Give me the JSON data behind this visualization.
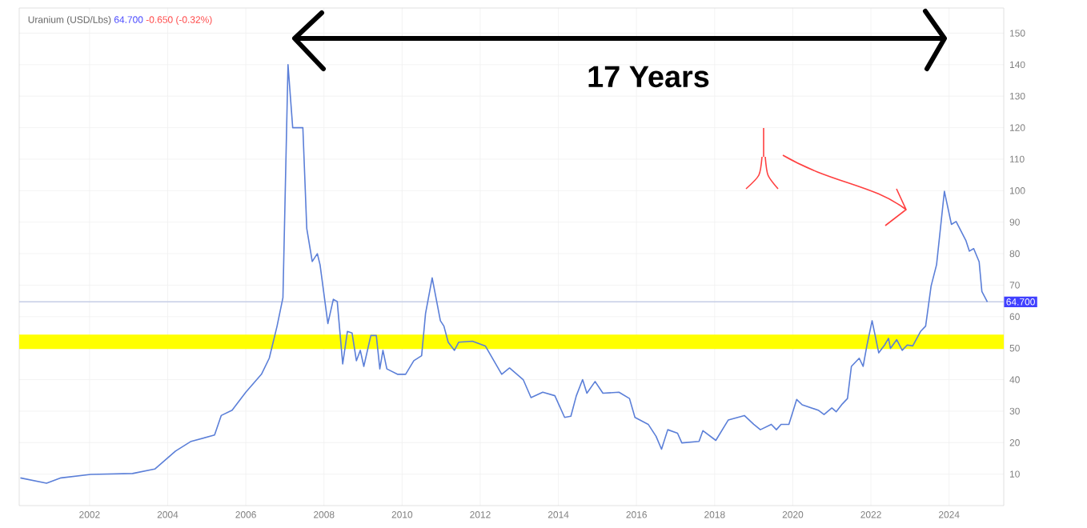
{
  "chart_data": {
    "type": "line",
    "title": "Uranium (USD/Lbs)",
    "subtitle": "64.700",
    "annotations": [
      "-0.650 (-0.32%)",
      "17 Years"
    ],
    "series": [
      {
        "color": "#5b7fd8",
        "x": [
          2000.23,
          2000.9,
          2001.27,
          2002.03,
          2003.1,
          2003.67,
          2004.2,
          2004.6,
          2005.2,
          2005.37,
          2005.65,
          2006.0,
          2006.4,
          2006.6,
          2006.8,
          2006.95,
          2007.08,
          2007.2,
          2007.46,
          2007.56,
          2007.7,
          2007.83,
          2007.9,
          2008.1,
          2008.24,
          2008.34,
          2008.48,
          2008.6,
          2008.72,
          2008.83,
          2008.93,
          2009.02,
          2009.2,
          2009.34,
          2009.43,
          2009.51,
          2009.61,
          2009.88,
          2010.09,
          2010.3,
          2010.5,
          2010.6,
          2010.77,
          2010.98,
          2011.07,
          2011.18,
          2011.34,
          2011.45,
          2011.8,
          2012.13,
          2012.55,
          2012.75,
          2013.1,
          2013.3,
          2013.6,
          2013.91,
          2014.16,
          2014.32,
          2014.46,
          2014.62,
          2014.73,
          2014.94,
          2015.14,
          2015.55,
          2015.82,
          2015.96,
          2016.3,
          2016.5,
          2016.64,
          2016.8,
          2017.05,
          2017.16,
          2017.6,
          2017.7,
          2018.03,
          2018.35,
          2018.76,
          2019.0,
          2019.17,
          2019.45,
          2019.58,
          2019.7,
          2019.9,
          2020.1,
          2020.24,
          2020.65,
          2020.8,
          2021.0,
          2021.11,
          2021.27,
          2021.4,
          2021.5,
          2021.7,
          2021.8,
          2021.9,
          2022.03,
          2022.2,
          2022.35,
          2022.45,
          2022.5,
          2022.66,
          2022.8,
          2022.93,
          2023.07,
          2023.27,
          2023.4,
          2023.54,
          2023.68,
          2023.88,
          2024.06,
          2024.18,
          2024.43,
          2024.52,
          2024.63,
          2024.77,
          2024.84,
          2024.98
        ],
        "values": [
          8.8,
          7.1,
          8.8,
          9.9,
          10.2,
          11.6,
          17.3,
          20.4,
          22.4,
          28.6,
          30.3,
          36,
          41.7,
          46.8,
          57,
          66,
          140,
          120,
          120,
          88,
          77.5,
          80,
          76.5,
          57.8,
          65.5,
          64.8,
          45,
          55.3,
          54.8,
          46,
          49.3,
          44.2,
          54,
          54,
          43.4,
          49.3,
          43.4,
          41.7,
          41.7,
          46,
          47.6,
          61,
          72.3,
          58.7,
          57,
          51.9,
          49.3,
          51.9,
          52.2,
          50.7,
          41.7,
          43.7,
          40,
          34.3,
          36,
          34.9,
          28,
          28.4,
          34.9,
          40,
          35.7,
          39.4,
          35.7,
          36,
          34,
          28,
          25.8,
          22,
          17.9,
          24.1,
          23,
          19.9,
          20.4,
          23.8,
          20.7,
          27.2,
          28.6,
          25.8,
          24.1,
          25.8,
          24.1,
          25.8,
          25.8,
          33.7,
          32,
          30.3,
          28.9,
          31,
          29.8,
          32.3,
          34,
          44.2,
          46.8,
          44.2,
          51,
          58.7,
          48.5,
          51,
          53.1,
          49.9,
          52.7,
          49.3,
          51,
          50.7,
          55.3,
          57,
          69.7,
          76.5,
          99.8,
          89.3,
          90.2,
          84.2,
          80.8,
          81.6,
          77.4,
          68,
          64.7
        ]
      }
    ],
    "xlim": [
      2000.2,
      2025.4
    ],
    "ylim": [
      0,
      158
    ],
    "xticks": [
      2002,
      2004,
      2006,
      2008,
      2010,
      2012,
      2014,
      2016,
      2018,
      2020,
      2022,
      2024
    ],
    "yticks": [
      10,
      20,
      30,
      40,
      50,
      60,
      70,
      80,
      90,
      100,
      110,
      120,
      130,
      140,
      150
    ],
    "ref_lines": [
      {
        "axis": "y",
        "value": 64.7,
        "label": "64.700",
        "color": "#c5cde6"
      },
      {
        "axis": "y",
        "value": 52,
        "color": "#ffff00"
      }
    ],
    "grid": true
  }
}
